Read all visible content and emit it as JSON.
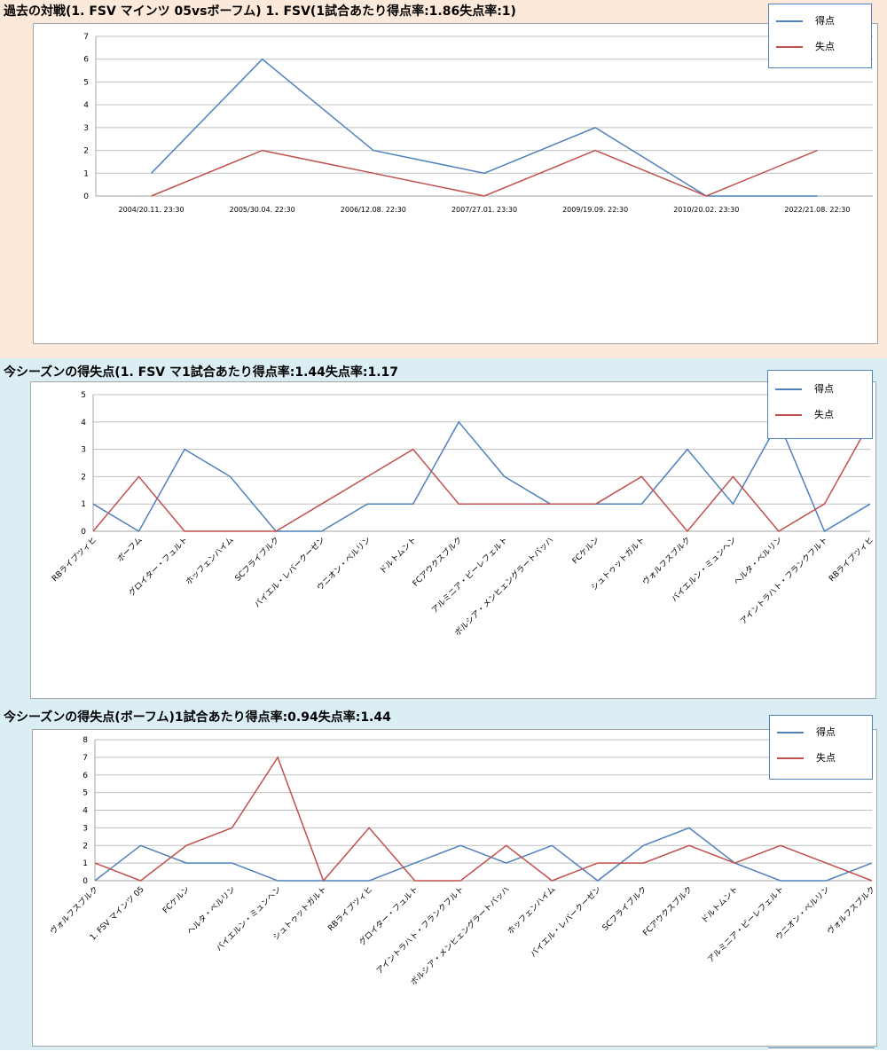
{
  "colors": {
    "score": "#4f81bd",
    "concede": "#c0504d",
    "grid": "#bfbfbf",
    "axis": "#a6a6a6"
  },
  "legend": {
    "score": "得点",
    "concede": "失点"
  },
  "panels": [
    {
      "title": "過去の対戦(1. FSV マインツ 05vsボーフム) 1. FSV(1試合あたり得点率:1.86失点率:1)"
    },
    {
      "title": "今シーズンの得失点(1. FSV マ1試合あたり得点率:1.44失点率:1.17"
    },
    {
      "title": "今シーズンの得失点(ボーフム)1試合あたり得点率:0.94失点率:1.44"
    }
  ],
  "chart_data": [
    {
      "type": "line",
      "title": "",
      "categories": [
        "2004/20.11. 23:30",
        "2005/30.04. 22:30",
        "2006/12.08. 22:30",
        "2007/27.01. 23:30",
        "2009/19.09. 22:30",
        "2010/20.02. 23:30",
        "2022/21.08. 22:30"
      ],
      "series": [
        {
          "name": "得点",
          "values": [
            1,
            6,
            2,
            1,
            3,
            0,
            0
          ]
        },
        {
          "name": "失点",
          "values": [
            0,
            2,
            1,
            0,
            2,
            0,
            2
          ]
        }
      ],
      "ylim": [
        0,
        7
      ],
      "yticks": [
        0,
        1,
        2,
        3,
        4,
        5,
        6,
        7
      ],
      "grid": true,
      "legend_position": "top-right"
    },
    {
      "type": "line",
      "title": "",
      "categories": [
        "RBライプツィヒ",
        "ボーフム",
        "グロイター・フュルト",
        "ホッフェンハイム",
        "SCフライブルク",
        "バイエル・レバークーゼン",
        "ウニオン・ベルリン",
        "ドルトムント",
        "FCアウクスブルク",
        "アルミニア・ビーレフェルト",
        "ボルシア・メンヒェングラートバッハ",
        "FCケルン",
        "シュトゥットガルト",
        "ヴォルフスブルク",
        "バイエルン・ミュンヘン",
        "ヘルタ・ベルリン",
        "アイントラハト・フランクフルト",
        "RBライプツィヒ"
      ],
      "series": [
        {
          "name": "得点",
          "values": [
            1,
            0,
            3,
            2,
            0,
            0,
            1,
            1,
            4,
            2,
            1,
            1,
            1,
            3,
            1,
            4,
            0,
            1
          ]
        },
        {
          "name": "失点",
          "values": [
            0,
            2,
            0,
            0,
            0,
            1,
            2,
            3,
            1,
            1,
            1,
            1,
            2,
            0,
            2,
            0,
            1,
            4
          ]
        }
      ],
      "ylim": [
        0,
        5
      ],
      "yticks": [
        0,
        1,
        2,
        3,
        4,
        5
      ],
      "grid": true,
      "legend_position": "top-right"
    },
    {
      "type": "line",
      "title": "",
      "categories": [
        "ヴォルフスブルク",
        "1. FSV マインツ 05",
        "FCケルン",
        "ヘルタ・ベルリン",
        "バイエルン・ミュンヘン",
        "シュトゥットガルト",
        "RBライプツィヒ",
        "グロイター・フュルト",
        "アイントラハト・フランクフルト",
        "ボルシア・メンヒェングラートバッハ",
        "ホッフェンハイム",
        "バイエル・レバークーゼン",
        "SCフライブルク",
        "FCアウクスブルク",
        "ドルトムント",
        "アルミニア・ビーレフェルト",
        "ウニオン・ベルリン",
        "ヴォルフスブルク"
      ],
      "series": [
        {
          "name": "得点",
          "values": [
            0,
            2,
            1,
            1,
            0,
            0,
            0,
            1,
            2,
            1,
            2,
            0,
            2,
            3,
            1,
            0,
            0,
            1
          ]
        },
        {
          "name": "失点",
          "values": [
            1,
            0,
            2,
            3,
            7,
            0,
            3,
            0,
            0,
            2,
            0,
            1,
            1,
            2,
            1,
            2,
            1,
            0
          ]
        }
      ],
      "ylim": [
        0,
        8
      ],
      "yticks": [
        0,
        1,
        2,
        3,
        4,
        5,
        6,
        7,
        8
      ],
      "grid": true,
      "legend_position": "top-right"
    }
  ]
}
